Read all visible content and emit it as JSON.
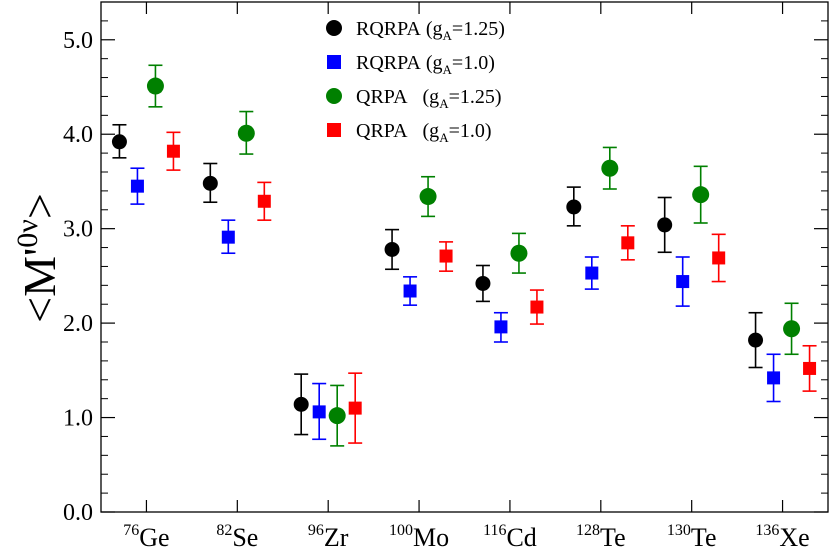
{
  "chart_data": {
    "type": "scatter",
    "title": "",
    "xlabel": "",
    "ylabel": "<M'0ν>",
    "ylim": [
      0.0,
      5.4
    ],
    "yticks": [
      "0.0",
      "1.0",
      "2.0",
      "3.0",
      "4.0",
      "5.0"
    ],
    "categories": [
      {
        "mass": "76",
        "element": "Ge"
      },
      {
        "mass": "82",
        "element": "Se"
      },
      {
        "mass": "96",
        "element": "Zr"
      },
      {
        "mass": "100",
        "element": "Mo"
      },
      {
        "mass": "116",
        "element": "Cd"
      },
      {
        "mass": "128",
        "element": "Te"
      },
      {
        "mass": "130",
        "element": "Te"
      },
      {
        "mass": "136",
        "element": "Xe"
      }
    ],
    "series": [
      {
        "method": "RQRPA",
        "ga": "1.25",
        "color": "#000000",
        "marker": "circle",
        "values": [
          3.92,
          3.48,
          1.14,
          2.78,
          2.42,
          3.23,
          3.04,
          1.82
        ],
        "err_low": [
          3.75,
          3.28,
          0.82,
          2.57,
          2.23,
          3.03,
          2.75,
          1.53
        ],
        "err_high": [
          4.1,
          3.69,
          1.46,
          2.99,
          2.61,
          3.44,
          3.33,
          2.11
        ]
      },
      {
        "method": "RQRPA",
        "ga": "1.0",
        "color": "#0000ff",
        "marker": "square",
        "values": [
          3.45,
          2.91,
          1.06,
          2.34,
          1.96,
          2.53,
          2.44,
          1.42
        ],
        "err_low": [
          3.26,
          2.74,
          0.77,
          2.19,
          1.8,
          2.36,
          2.18,
          1.17
        ],
        "err_high": [
          3.64,
          3.09,
          1.36,
          2.49,
          2.11,
          2.7,
          2.7,
          1.67
        ]
      },
      {
        "method": "QRPA",
        "ga": "1.25",
        "color": "#008000",
        "marker": "circle",
        "values": [
          4.51,
          4.01,
          1.02,
          3.34,
          2.74,
          3.64,
          3.36,
          1.94
        ],
        "err_low": [
          4.29,
          3.79,
          0.7,
          3.13,
          2.53,
          3.42,
          3.06,
          1.67
        ],
        "err_high": [
          4.73,
          4.24,
          1.34,
          3.55,
          2.95,
          3.86,
          3.66,
          2.21
        ]
      },
      {
        "method": "QRPA",
        "ga": "1.0",
        "color": "#ff0000",
        "marker": "square",
        "values": [
          3.82,
          3.29,
          1.1,
          2.71,
          2.17,
          2.85,
          2.69,
          1.52
        ],
        "err_low": [
          3.62,
          3.09,
          0.73,
          2.55,
          1.99,
          2.67,
          2.44,
          1.28
        ],
        "err_high": [
          4.02,
          3.49,
          1.47,
          2.86,
          2.35,
          3.03,
          2.94,
          1.76
        ]
      }
    ],
    "legend_placement": "top-center"
  }
}
